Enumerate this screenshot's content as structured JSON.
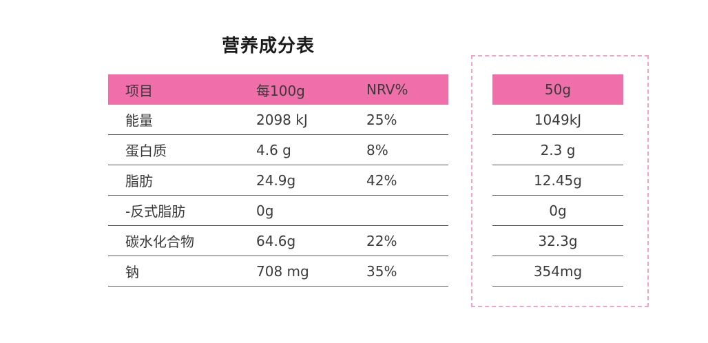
{
  "title": "营养成分表",
  "main_table": {
    "headers": [
      "项目",
      "每100g",
      "NRV%"
    ],
    "rows": [
      [
        "能量",
        "2098 kJ",
        "25%"
      ],
      [
        "蛋白质",
        "4.6 g",
        "8%"
      ],
      [
        "脂肪",
        "24.9g",
        "42%"
      ],
      [
        "-反式脂肪",
        "0g",
        ""
      ],
      [
        "碳水化合物",
        "64.6g",
        "22%"
      ],
      [
        "钠",
        "708 mg",
        "35%"
      ]
    ]
  },
  "side_table": {
    "header": "50g",
    "values": [
      "1049kJ",
      "2.3 g",
      "12.45g",
      "0g",
      "32.3g",
      "354mg"
    ]
  },
  "colors": {
    "header_bg": "#f06ea9",
    "dashed_border": "#f2a3c6"
  }
}
